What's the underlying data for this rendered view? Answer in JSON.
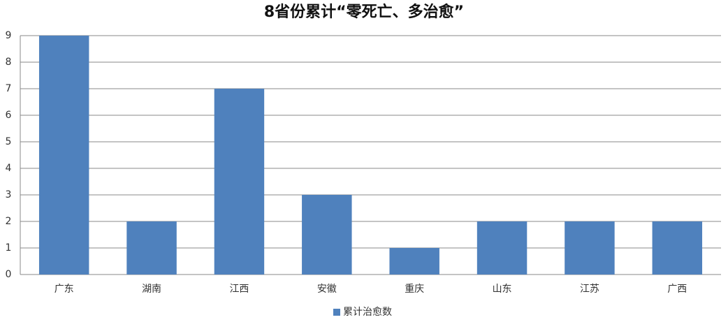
{
  "chart_data": {
    "type": "bar",
    "title": "8省份累计“零死亡、多治愈”",
    "categories": [
      "广东",
      "湖南",
      "江西",
      "安徽",
      "重庆",
      "山东",
      "江苏",
      "广西"
    ],
    "series": [
      {
        "name": "累计治愈数",
        "color": "#4f81bd",
        "values": [
          9,
          2,
          7,
          3,
          1,
          2,
          2,
          2
        ]
      }
    ],
    "ylim": [
      0,
      9
    ],
    "yticks": [
      0,
      1,
      2,
      3,
      4,
      5,
      6,
      7,
      8,
      9
    ],
    "grid": true,
    "legend": "bottom"
  }
}
